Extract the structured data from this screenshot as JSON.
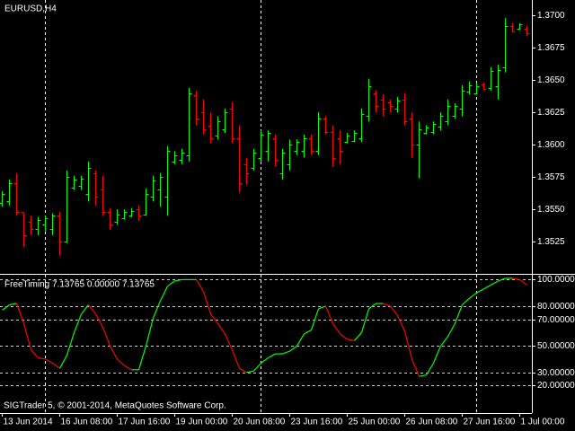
{
  "chart_data": [
    {
      "type": "ohlc",
      "title": "EURUSD,H4",
      "categories": [
        "13 Jun 2014",
        null,
        null,
        null,
        null,
        null,
        null,
        null,
        "16 Jun 08:00",
        null,
        null,
        null,
        null,
        null,
        null,
        null,
        "17 Jun 16:00",
        null,
        null,
        null,
        null,
        null,
        null,
        null,
        "19 Jun 00:00",
        null,
        null,
        null,
        null,
        null,
        null,
        null,
        "20 Jun 08:00",
        null,
        null,
        null,
        null,
        null,
        null,
        null,
        "23 Jun 16:00",
        null,
        null,
        null,
        null,
        null,
        null,
        null,
        "25 Jun 00:00",
        null,
        null,
        null,
        null,
        null,
        null,
        null,
        "26 Jun 08:00",
        null,
        null,
        null,
        null,
        null,
        null,
        null,
        "27 Jun 16:00",
        null,
        null,
        null,
        null,
        null,
        null,
        null,
        "1 Jul 00:00",
        null
      ],
      "open": [
        1.3555,
        1.3556,
        1.357,
        1.3548,
        1.354,
        1.3535,
        1.3538,
        1.3535,
        1.3545,
        1.3525,
        1.3567,
        1.3568,
        1.3562,
        1.3578,
        1.3565,
        1.3548,
        1.354,
        1.3543,
        1.3545,
        1.355,
        1.3546,
        1.356,
        1.3565,
        1.356,
        1.3587,
        1.3588,
        1.3592,
        1.3638,
        1.3625,
        1.3615,
        1.3607,
        1.3612,
        1.3628,
        1.3605,
        1.3585,
        1.3582,
        1.359,
        1.3595,
        1.3605,
        1.3578,
        1.3585,
        1.3595,
        1.3595,
        1.3605,
        1.3595,
        1.362,
        1.361,
        1.3605,
        1.3602,
        1.3603,
        1.3605,
        1.3622,
        1.364,
        1.3635,
        1.3633,
        1.3628,
        1.3635,
        1.362,
        1.36,
        1.3609,
        1.361,
        1.3614,
        1.3618,
        1.3622,
        1.3628,
        1.3641,
        1.364,
        1.3647,
        1.3644,
        1.3645,
        1.366,
        1.3692,
        1.369,
        1.369
      ],
      "high": [
        1.3564,
        1.3573,
        1.3578,
        1.3547,
        1.3545,
        1.3544,
        1.3545,
        1.3547,
        1.3548,
        1.358,
        1.3576,
        1.3576,
        1.3587,
        1.358,
        1.3576,
        1.3551,
        1.355,
        1.355,
        1.3551,
        1.3553,
        1.3566,
        1.3576,
        1.3578,
        1.3599,
        1.3595,
        1.3597,
        1.3644,
        1.3642,
        1.3635,
        1.3625,
        1.3622,
        1.3628,
        1.3633,
        1.3615,
        1.359,
        1.3597,
        1.3611,
        1.3611,
        1.3608,
        1.3597,
        1.3604,
        1.3604,
        1.3608,
        1.3608,
        1.3625,
        1.3622,
        1.3615,
        1.3611,
        1.3609,
        1.3611,
        1.3628,
        1.3651,
        1.3642,
        1.3639,
        1.3635,
        1.3637,
        1.364,
        1.3625,
        1.3618,
        1.3615,
        1.3618,
        1.3625,
        1.3635,
        1.3632,
        1.3646,
        1.3649,
        1.3648,
        1.3648,
        1.366,
        1.3662,
        1.3698,
        1.3694,
        1.3694,
        1.3692
      ],
      "low": [
        1.3552,
        1.3553,
        1.3545,
        1.3521,
        1.353,
        1.353,
        1.3533,
        1.353,
        1.3514,
        1.3524,
        1.3565,
        1.3565,
        1.3556,
        1.3553,
        1.3545,
        1.3534,
        1.3538,
        1.3542,
        1.3544,
        1.3541,
        1.3545,
        1.3556,
        1.3552,
        1.3545,
        1.3585,
        1.3585,
        1.3587,
        1.3615,
        1.3608,
        1.3601,
        1.3604,
        1.3609,
        1.3601,
        1.3563,
        1.3569,
        1.358,
        1.3587,
        1.3587,
        1.3583,
        1.3573,
        1.358,
        1.3592,
        1.359,
        1.3592,
        1.3592,
        1.3608,
        1.3583,
        1.3585,
        1.3601,
        1.3602,
        1.3602,
        1.3618,
        1.3625,
        1.3622,
        1.3625,
        1.3625,
        1.3615,
        1.359,
        1.3574,
        1.3608,
        1.3608,
        1.3611,
        1.3615,
        1.362,
        1.3622,
        1.3639,
        1.3639,
        1.3642,
        1.3642,
        1.3635,
        1.3656,
        1.3687,
        1.3689,
        1.3684
      ],
      "close": [
        1.3562,
        1.357,
        1.3548,
        1.353,
        1.3535,
        1.3542,
        1.3543,
        1.3545,
        1.3525,
        1.3575,
        1.3573,
        1.3574,
        1.3582,
        1.356,
        1.3548,
        1.3538,
        1.3546,
        1.3548,
        1.3549,
        1.3545,
        1.3562,
        1.3572,
        1.3575,
        1.3595,
        1.3592,
        1.3594,
        1.364,
        1.362,
        1.3612,
        1.3605,
        1.3618,
        1.3625,
        1.3605,
        1.357,
        1.3578,
        1.3594,
        1.3608,
        1.3609,
        1.3588,
        1.3594,
        1.36,
        1.3602,
        1.3605,
        1.3595,
        1.362,
        1.361,
        1.359,
        1.3595,
        1.3607,
        1.3609,
        1.3624,
        1.3645,
        1.363,
        1.3628,
        1.363,
        1.3634,
        1.3618,
        1.36,
        1.3612,
        1.3613,
        1.3616,
        1.3622,
        1.363,
        1.363,
        1.3642,
        1.3646,
        1.3645,
        1.3643,
        1.3657,
        1.3658,
        1.3692,
        1.3688,
        1.3693,
        1.3686
      ],
      "up_color": "#00ff00",
      "down_color": "#ff0000",
      "ylim": [
        1.35,
        1.3712
      ],
      "yticks": [
        {
          "value": 1.37,
          "label": "1.3700"
        },
        {
          "value": 1.3675,
          "label": "1.3675"
        },
        {
          "value": 1.365,
          "label": "1.3650"
        },
        {
          "value": 1.3625,
          "label": "1.3625"
        },
        {
          "value": 1.36,
          "label": "1.3600"
        },
        {
          "value": 1.3575,
          "label": "1.3575"
        },
        {
          "value": 1.355,
          "label": "1.3550"
        },
        {
          "value": 1.3525,
          "label": "1.3525"
        }
      ]
    },
    {
      "type": "line",
      "title": "FreeTiming 7.13765 0.00000 7.13765",
      "footer": "SIGTrader 5, © 2001-2014, MetaQuotes Software Corp.",
      "values": [
        77,
        81,
        82,
        67,
        47,
        41,
        40,
        37,
        33,
        43,
        60,
        74,
        81,
        74,
        64,
        50,
        40,
        35,
        32,
        32,
        50,
        71,
        84,
        95,
        99,
        100,
        100,
        100,
        91,
        74,
        67,
        59,
        47,
        33,
        30,
        31,
        37,
        41,
        44,
        44,
        46,
        50,
        59,
        62,
        78,
        80,
        67,
        59,
        55,
        54,
        60,
        78,
        82,
        82,
        80,
        73,
        61,
        40,
        27,
        28,
        37,
        50,
        57,
        67,
        81,
        86,
        90,
        93,
        96,
        99,
        101,
        101,
        100,
        96
      ],
      "up_color": "#00ff00",
      "down_color": "#ff0000",
      "ylim": [
        0,
        103
      ],
      "yticks": [
        {
          "value": 100,
          "label": "100.000000"
        },
        {
          "value": 80,
          "label": "80.000000"
        },
        {
          "value": 70,
          "label": "70.000000"
        },
        {
          "value": 50,
          "label": "50.000000"
        },
        {
          "value": 30,
          "label": "30.000000"
        },
        {
          "value": 20,
          "label": "20.000000"
        }
      ],
      "grid": true
    }
  ]
}
